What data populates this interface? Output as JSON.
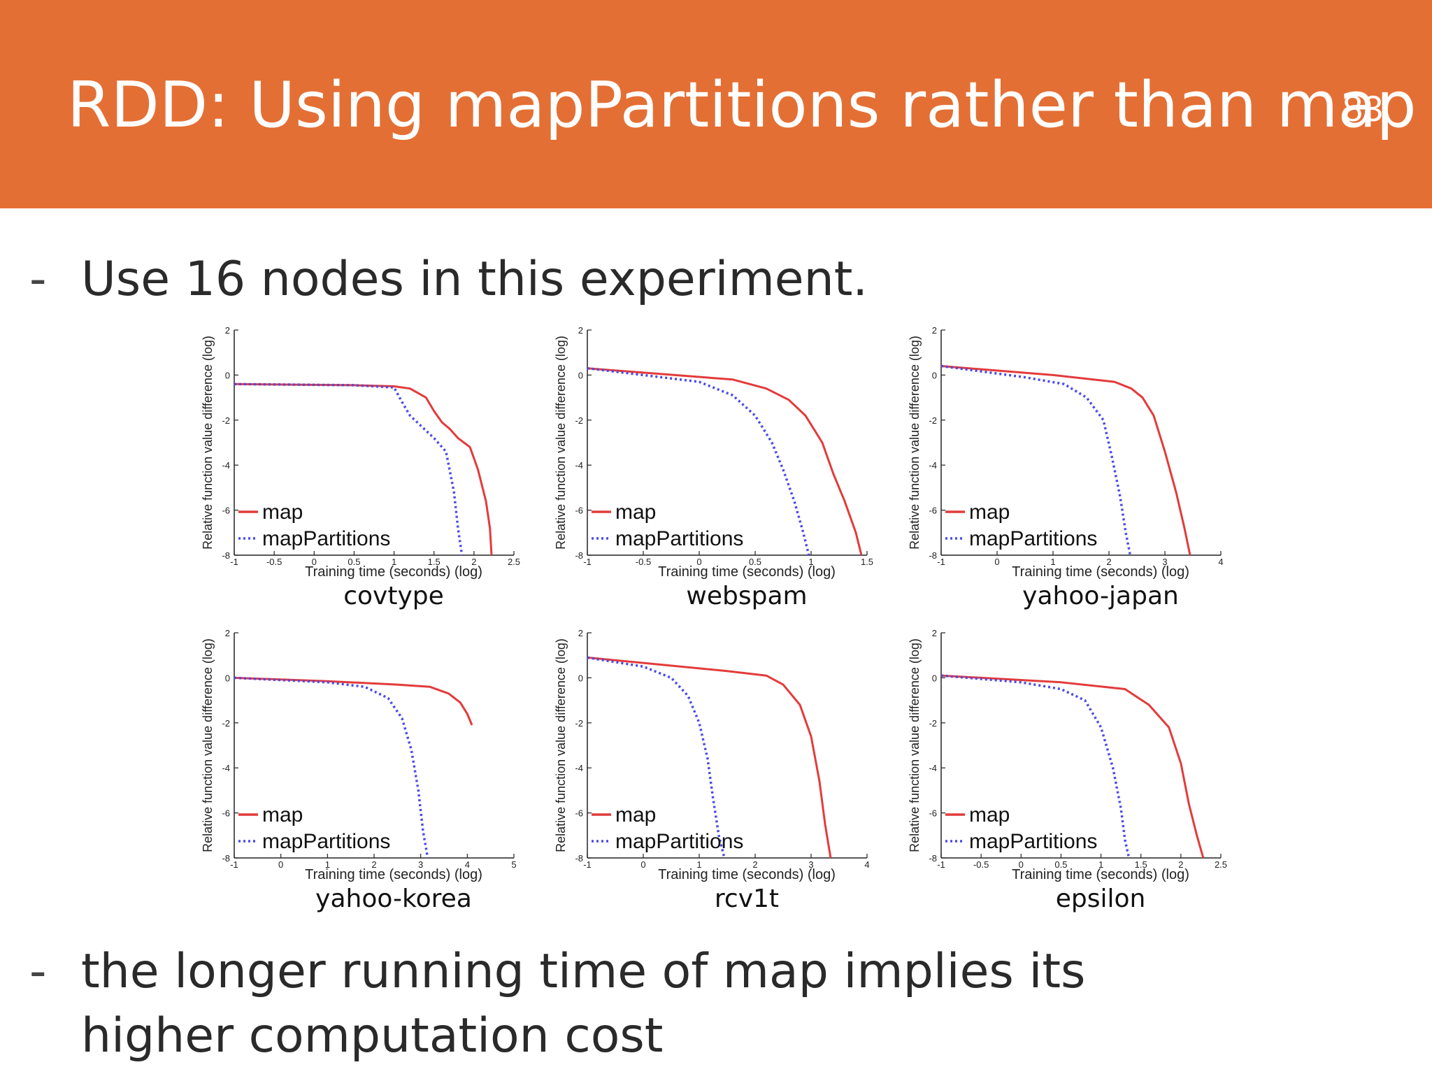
{
  "slide": {
    "title": "RDD: Using mapPartitions rather than map",
    "page_number": "83",
    "bullets": [
      {
        "marker": "-",
        "text": "Use 16 nodes in this experiment."
      },
      {
        "marker": "-",
        "text": "the longer running time of map implies its higher computation cost"
      }
    ]
  },
  "colors": {
    "header": "#e46f34",
    "map": "#e33b3b",
    "mapPartitions": "#4a4ae8"
  },
  "chart_data": [
    {
      "type": "line",
      "title": "covtype",
      "xlabel": "Training time (seconds) (log)",
      "ylabel": "Relative function value difference (log)",
      "xlim": [
        -1,
        2.5
      ],
      "ylim": [
        -8,
        2
      ],
      "xticks": [
        -1,
        -0.5,
        0,
        0.5,
        1,
        1.5,
        2,
        2.5
      ],
      "xtick_labels": [
        "-1",
        "-0.5",
        "0",
        "0.5",
        "1",
        "1.5",
        "2",
        "2.5"
      ],
      "yticks": [
        -8,
        -6,
        -4,
        -2,
        0,
        2
      ],
      "ytick_labels": [
        "-8",
        "-6",
        "-4",
        "-2",
        "0",
        "2"
      ],
      "legend": "bottom-left",
      "series": [
        {
          "name": "map",
          "style": "solid",
          "x": [
            -1,
            0.5,
            1.0,
            1.2,
            1.4,
            1.5,
            1.6,
            1.7,
            1.8,
            1.95,
            2.05,
            2.15,
            2.2,
            2.22
          ],
          "y": [
            -0.4,
            -0.45,
            -0.5,
            -0.6,
            -1.0,
            -1.6,
            -2.1,
            -2.4,
            -2.8,
            -3.2,
            -4.2,
            -5.6,
            -6.8,
            -8.0
          ]
        },
        {
          "name": "mapPartitions",
          "style": "dotted",
          "x": [
            -1,
            0.5,
            1.0,
            1.1,
            1.2,
            1.35,
            1.5,
            1.65,
            1.75,
            1.8,
            1.85
          ],
          "y": [
            -0.4,
            -0.45,
            -0.55,
            -1.2,
            -1.8,
            -2.3,
            -2.8,
            -3.4,
            -5.2,
            -6.8,
            -8.0
          ]
        }
      ]
    },
    {
      "type": "line",
      "title": "webspam",
      "xlabel": "Training time (seconds) (log)",
      "ylabel": "Relative function value difference (log)",
      "xlim": [
        -1,
        1.5
      ],
      "ylim": [
        -8,
        2
      ],
      "xticks": [
        -1,
        -0.5,
        0,
        0.5,
        1,
        1.5
      ],
      "xtick_labels": [
        "-1",
        "-0.5",
        "0",
        "0.5",
        "1",
        "1.5"
      ],
      "yticks": [
        -8,
        -6,
        -4,
        -2,
        0,
        2
      ],
      "ytick_labels": [
        "-8",
        "-6",
        "-4",
        "-2",
        "0",
        "2"
      ],
      "legend": "bottom-left",
      "series": [
        {
          "name": "map",
          "style": "solid",
          "x": [
            -1,
            0.3,
            0.6,
            0.8,
            0.95,
            1.1,
            1.2,
            1.3,
            1.4,
            1.45
          ],
          "y": [
            0.3,
            -0.2,
            -0.6,
            -1.1,
            -1.8,
            -3.0,
            -4.4,
            -5.6,
            -7.0,
            -8.0
          ]
        },
        {
          "name": "mapPartitions",
          "style": "dotted",
          "x": [
            -1,
            0.0,
            0.3,
            0.5,
            0.65,
            0.75,
            0.85,
            0.93,
            0.98
          ],
          "y": [
            0.3,
            -0.3,
            -0.9,
            -1.8,
            -3.0,
            -4.2,
            -5.6,
            -7.0,
            -8.0
          ]
        }
      ]
    },
    {
      "type": "line",
      "title": "yahoo-japan",
      "xlabel": "Training time (seconds) (log)",
      "ylabel": "Relative function value difference (log)",
      "xlim": [
        -1,
        4
      ],
      "ylim": [
        -8,
        2
      ],
      "xticks": [
        -1,
        0,
        1,
        2,
        3,
        4
      ],
      "xtick_labels": [
        "-1",
        "0",
        "1",
        "2",
        "3",
        "4"
      ],
      "yticks": [
        -8,
        -6,
        -4,
        -2,
        0,
        2
      ],
      "ytick_labels": [
        "-8",
        "-6",
        "-4",
        "-2",
        "0",
        "2"
      ],
      "legend": "bottom-left",
      "series": [
        {
          "name": "map",
          "style": "solid",
          "x": [
            -1,
            1.0,
            2.1,
            2.4,
            2.6,
            2.8,
            3.0,
            3.2,
            3.35,
            3.45
          ],
          "y": [
            0.4,
            0.0,
            -0.3,
            -0.6,
            -1.0,
            -1.8,
            -3.4,
            -5.2,
            -6.8,
            -8.0
          ]
        },
        {
          "name": "mapPartitions",
          "style": "dotted",
          "x": [
            -1,
            0.5,
            1.2,
            1.6,
            1.9,
            2.05,
            2.2,
            2.3,
            2.38
          ],
          "y": [
            0.4,
            -0.1,
            -0.4,
            -1.0,
            -2.0,
            -3.6,
            -5.4,
            -7.0,
            -8.0
          ]
        }
      ]
    },
    {
      "type": "line",
      "title": "yahoo-korea",
      "xlabel": "Training time (seconds) (log)",
      "ylabel": "Relative function value difference (log)",
      "xlim": [
        -1,
        5
      ],
      "ylim": [
        -8,
        2
      ],
      "xticks": [
        -1,
        0,
        1,
        2,
        3,
        4,
        5
      ],
      "xtick_labels": [
        "-1",
        "0",
        "1",
        "2",
        "3",
        "4",
        "5"
      ],
      "yticks": [
        -8,
        -6,
        -4,
        -2,
        0,
        2
      ],
      "ytick_labels": [
        "-8",
        "-6",
        "-4",
        "-2",
        "0",
        "2"
      ],
      "legend": "bottom-left",
      "series": [
        {
          "name": "map",
          "style": "solid",
          "x": [
            -1,
            1.0,
            2.5,
            3.2,
            3.6,
            3.85,
            4.0,
            4.1
          ],
          "y": [
            0.0,
            -0.15,
            -0.3,
            -0.4,
            -0.7,
            -1.1,
            -1.6,
            -2.1
          ]
        },
        {
          "name": "mapPartitions",
          "style": "dotted",
          "x": [
            -1,
            1.0,
            1.8,
            2.3,
            2.6,
            2.8,
            2.95,
            3.05,
            3.15
          ],
          "y": [
            0.0,
            -0.2,
            -0.4,
            -0.9,
            -1.8,
            -3.2,
            -5.0,
            -6.8,
            -8.0
          ]
        }
      ]
    },
    {
      "type": "line",
      "title": "rcv1t",
      "xlabel": "Training time (seconds) (log)",
      "ylabel": "Relative function value difference (log)",
      "xlim": [
        -1,
        4
      ],
      "ylim": [
        -8,
        2
      ],
      "xticks": [
        -1,
        0,
        1,
        2,
        3,
        4
      ],
      "xtick_labels": [
        "-1",
        "0",
        "1",
        "2",
        "3",
        "4"
      ],
      "yticks": [
        -8,
        -6,
        -4,
        -2,
        0,
        2
      ],
      "ytick_labels": [
        "-8",
        "-6",
        "-4",
        "-2",
        "0",
        "2"
      ],
      "legend": "bottom-left",
      "series": [
        {
          "name": "map",
          "style": "solid",
          "x": [
            -1,
            1.5,
            2.2,
            2.5,
            2.8,
            3.0,
            3.15,
            3.25,
            3.35
          ],
          "y": [
            0.9,
            0.3,
            0.1,
            -0.3,
            -1.2,
            -2.6,
            -4.6,
            -6.5,
            -8.0
          ]
        },
        {
          "name": "mapPartitions",
          "style": "dotted",
          "x": [
            -1,
            0.0,
            0.5,
            0.8,
            1.0,
            1.15,
            1.25,
            1.35,
            1.45
          ],
          "y": [
            0.9,
            0.5,
            0.0,
            -0.8,
            -2.0,
            -3.6,
            -5.4,
            -7.0,
            -8.0
          ]
        }
      ]
    },
    {
      "type": "line",
      "title": "epsilon",
      "xlabel": "Training time (seconds) (log)",
      "ylabel": "Relative function value difference (log)",
      "xlim": [
        -1,
        2.5
      ],
      "ylim": [
        -8,
        2
      ],
      "xticks": [
        -1,
        -0.5,
        0,
        0.5,
        1,
        1.5,
        2,
        2.5
      ],
      "xtick_labels": [
        "-1",
        "-0.5",
        "0",
        "0.5",
        "1",
        "1.5",
        "2",
        "2.5"
      ],
      "yticks": [
        -8,
        -6,
        -4,
        -2,
        0,
        2
      ],
      "ytick_labels": [
        "-8",
        "-6",
        "-4",
        "-2",
        "0",
        "2"
      ],
      "legend": "bottom-left",
      "series": [
        {
          "name": "map",
          "style": "solid",
          "x": [
            -1,
            0.5,
            1.3,
            1.6,
            1.85,
            2.0,
            2.1,
            2.2,
            2.28
          ],
          "y": [
            0.1,
            -0.2,
            -0.5,
            -1.2,
            -2.2,
            -3.8,
            -5.6,
            -7.0,
            -8.0
          ]
        },
        {
          "name": "mapPartitions",
          "style": "dotted",
          "x": [
            -1,
            0.0,
            0.5,
            0.8,
            1.0,
            1.15,
            1.25,
            1.3,
            1.35
          ],
          "y": [
            0.1,
            -0.2,
            -0.5,
            -1.0,
            -2.2,
            -4.0,
            -5.8,
            -7.2,
            -8.0
          ]
        }
      ]
    }
  ]
}
